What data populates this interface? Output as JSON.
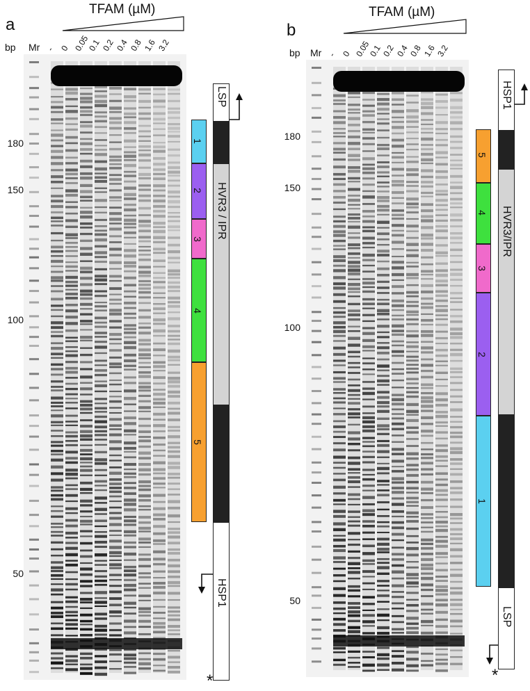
{
  "panels": [
    {
      "letter": "a",
      "title": "TFAM (µM)",
      "bp_label": "bp",
      "marker_label": "Mr",
      "lanes": [
        "-",
        "0",
        "0.05",
        "0.1",
        "0.2",
        "0.4",
        "0.8",
        "1.6",
        "3.2"
      ],
      "size_markers": [
        "180",
        "150",
        "100",
        "50"
      ],
      "segments": [
        "1",
        "2",
        "3",
        "4",
        "5"
      ],
      "segment_colors": [
        "#5bd0f0",
        "#9b5ff0",
        "#f06acb",
        "#3ee03e",
        "#f7a030"
      ],
      "map_labels": {
        "top": "LSP",
        "middle": "HVR3 / IPR",
        "bottom": "HSP1"
      },
      "star": "*"
    },
    {
      "letter": "b",
      "title": "TFAM (µM)",
      "bp_label": "bp",
      "marker_label": "Mr",
      "lanes": [
        "-",
        "0",
        "0.05",
        "0.1",
        "0.2",
        "0.4",
        "0.8",
        "1.6",
        "3.2"
      ],
      "size_markers": [
        "180",
        "150",
        "100",
        "50"
      ],
      "segments": [
        "5",
        "4",
        "3",
        "2",
        "1"
      ],
      "segment_colors": [
        "#f7a030",
        "#3ee03e",
        "#f06acb",
        "#9b5ff0",
        "#5bd0f0"
      ],
      "map_labels": {
        "top": "HSP1",
        "middle": "HVR3/IPR",
        "bottom": "LSP"
      },
      "star": "*"
    }
  ]
}
